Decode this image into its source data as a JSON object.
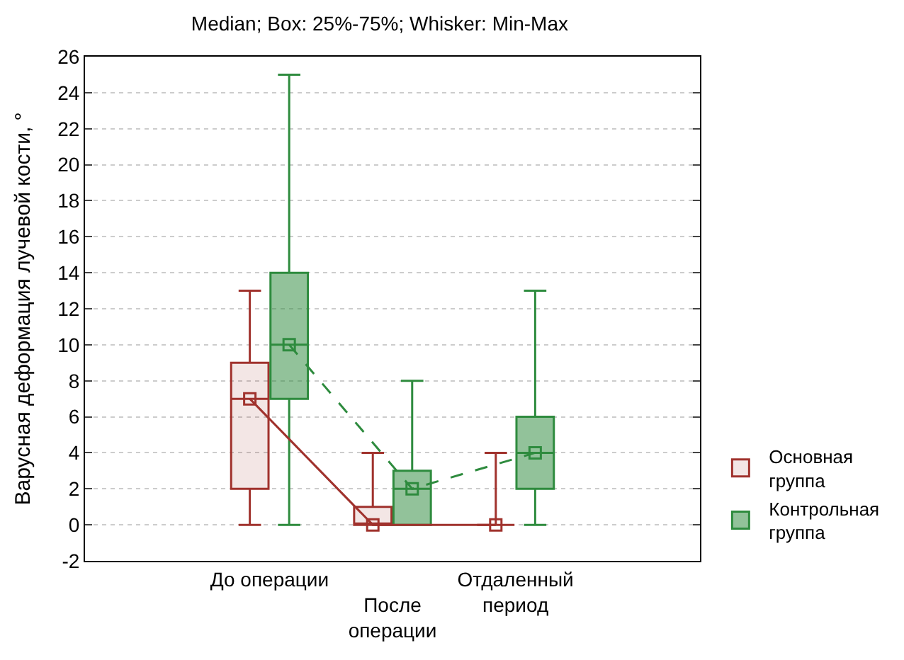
{
  "chart_data": {
    "type": "box",
    "title": "Median; Box: 25%-75%; Whisker: Min-Max",
    "ylabel": "Варусная деформация лучевой кости, °",
    "categories": [
      "До операции",
      "После операции",
      "Отдаленный период"
    ],
    "series": [
      {
        "name": "Основная группа",
        "color": "#a0322d",
        "boxes": [
          {
            "low": 0,
            "q1": 2,
            "median": 7,
            "q3": 9,
            "high": 13
          },
          {
            "low": 0,
            "q1": 0,
            "median": 0,
            "q3": 1,
            "high": 4
          },
          {
            "low": 0,
            "q1": 0,
            "median": 0,
            "q3": 0,
            "high": 4
          }
        ]
      },
      {
        "name": "Контрольная группа",
        "color": "#2e8b3e",
        "boxes": [
          {
            "low": 0,
            "q1": 7,
            "median": 10,
            "q3": 14,
            "high": 25
          },
          {
            "low": 0,
            "q1": 0,
            "median": 2,
            "q3": 3,
            "high": 8
          },
          {
            "low": 0,
            "q1": 2,
            "median": 4,
            "q3": 6,
            "high": 13
          }
        ]
      },
      {
        "type": "line",
        "color": "#a0322d",
        "line_style": "solid",
        "values": [
          7,
          0,
          0
        ]
      },
      {
        "type": "line",
        "color": "#2e8b3e",
        "line_style": "dashed",
        "values": [
          10,
          2,
          4
        ]
      }
    ],
    "ylim": [
      -2,
      26
    ],
    "yticks": [
      -2,
      0,
      2,
      4,
      6,
      8,
      10,
      12,
      14,
      16,
      18,
      20,
      22,
      24,
      26
    ],
    "grid": "y",
    "legend": "right",
    "marker": "square"
  }
}
